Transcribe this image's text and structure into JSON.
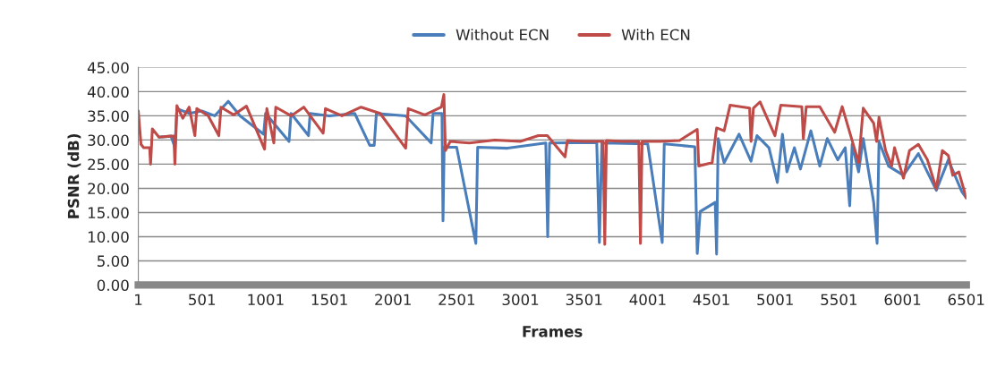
{
  "chart_data": {
    "type": "line",
    "xlabel": "Frames",
    "ylabel": "PSNR (dB)",
    "xlim": [
      1,
      6501
    ],
    "xticks": [
      1,
      501,
      1001,
      1501,
      2001,
      2501,
      3001,
      3501,
      4001,
      4501,
      5001,
      5501,
      6001,
      6501
    ],
    "ylim": [
      0,
      45
    ],
    "yticks": [
      {
        "value": 0,
        "label": "0.00"
      },
      {
        "value": 5,
        "label": "5.00"
      },
      {
        "value": 10,
        "label": "10.00"
      },
      {
        "value": 15,
        "label": "15.00"
      },
      {
        "value": 20,
        "label": "20.00"
      },
      {
        "value": 25,
        "label": "25.00"
      },
      {
        "value": 30,
        "label": "30.00"
      },
      {
        "value": 35,
        "label": "35.00"
      },
      {
        "value": 40,
        "label": "40.00"
      },
      {
        "value": 45,
        "label": "45.00"
      }
    ],
    "grid": "y",
    "legend": "top",
    "marker": "none",
    "line_style": "solid",
    "series": [
      {
        "name": "Without ECN",
        "color": "#4a7ebb",
        "x": [
          163,
          257,
          288,
          304,
          400,
          500,
          600,
          707,
          800,
          985,
          1000,
          1184,
          1200,
          1337,
          1350,
          1500,
          1700,
          1818,
          1853,
          1870,
          2100,
          2300,
          2315,
          2385,
          2393,
          2402,
          2500,
          2651,
          2665,
          2900,
          3200,
          3215,
          3230,
          3600,
          3621,
          3640,
          4000,
          4114,
          4130,
          4370,
          4389,
          4412,
          4530,
          4541,
          4553,
          4600,
          4717,
          4811,
          4858,
          4952,
          5018,
          5058,
          5093,
          5152,
          5199,
          5281,
          5351,
          5410,
          5492,
          5551,
          5586,
          5605,
          5656,
          5692,
          5774,
          5801,
          5816,
          5891,
          6008,
          6125,
          6266,
          6360,
          6466,
          6501
        ],
        "values": [
          30.6,
          30.8,
          28.5,
          36.5,
          35.5,
          36.0,
          35.0,
          38.0,
          35.0,
          31.2,
          35.5,
          29.7,
          35.5,
          30.9,
          35.5,
          35.0,
          35.5,
          28.9,
          28.9,
          35.5,
          35.0,
          29.4,
          35.5,
          35.5,
          13.3,
          28.5,
          28.5,
          8.6,
          28.5,
          28.3,
          29.4,
          10.0,
          29.4,
          29.5,
          8.8,
          29.4,
          29.2,
          8.8,
          29.2,
          28.6,
          6.5,
          15.2,
          17.1,
          6.4,
          30.3,
          25.3,
          31.2,
          25.6,
          30.9,
          28.4,
          21.2,
          31.2,
          23.4,
          28.4,
          24.0,
          31.9,
          24.6,
          30.3,
          25.9,
          28.4,
          16.4,
          29.1,
          23.4,
          30.3,
          17.1,
          8.6,
          29.7,
          24.6,
          22.7,
          27.2,
          19.6,
          25.9,
          19.3,
          18.0
        ]
      },
      {
        "name": "With ECN",
        "color": "#be4b48",
        "x": [
          1,
          22,
          43,
          90,
          97,
          104,
          111,
          163,
          257,
          280,
          288,
          296,
          304,
          350,
          400,
          445,
          460,
          550,
          633,
          650,
          750,
          850,
          992,
          1010,
          1065,
          1080,
          1200,
          1300,
          1452,
          1470,
          1600,
          1750,
          1900,
          2100,
          2120,
          2250,
          2380,
          2400,
          2412,
          2450,
          2600,
          2800,
          3000,
          3142,
          3212,
          3351,
          3370,
          3500,
          3650,
          3663,
          3676,
          3800,
          3930,
          3943,
          3956,
          4100,
          4250,
          4389,
          4401,
          4506,
          4541,
          4600,
          4647,
          4800,
          4811,
          4830,
          4882,
          4999,
          5045,
          5210,
          5222,
          5245,
          5351,
          5468,
          5527,
          5656,
          5692,
          5774,
          5797,
          5816,
          5868,
          5915,
          5938,
          6008,
          6055,
          6125,
          6196,
          6266,
          6313,
          6360,
          6395,
          6443,
          6501
        ],
        "values": [
          36.0,
          29.1,
          28.4,
          28.4,
          25.0,
          28.4,
          32.3,
          30.6,
          30.8,
          30.8,
          25.0,
          30.8,
          37.1,
          34.5,
          36.8,
          30.9,
          36.5,
          35.0,
          30.9,
          36.8,
          35.2,
          37.0,
          28.1,
          36.5,
          29.4,
          36.8,
          35.0,
          36.8,
          31.4,
          36.5,
          35.0,
          36.8,
          35.5,
          28.3,
          36.5,
          35.2,
          36.8,
          39.4,
          27.8,
          29.7,
          29.4,
          30.0,
          29.7,
          30.9,
          30.9,
          26.5,
          29.9,
          29.7,
          29.7,
          8.4,
          29.9,
          29.7,
          29.7,
          8.6,
          29.7,
          29.7,
          29.9,
          32.2,
          24.6,
          25.3,
          32.5,
          31.9,
          37.2,
          36.6,
          29.7,
          36.6,
          37.9,
          30.9,
          37.2,
          36.9,
          30.3,
          36.9,
          36.9,
          31.6,
          36.9,
          25.3,
          36.6,
          33.5,
          29.7,
          34.7,
          27.8,
          24.6,
          28.4,
          22.1,
          27.8,
          29.1,
          25.9,
          19.9,
          27.8,
          26.8,
          22.7,
          23.4,
          18.0
        ]
      }
    ]
  }
}
